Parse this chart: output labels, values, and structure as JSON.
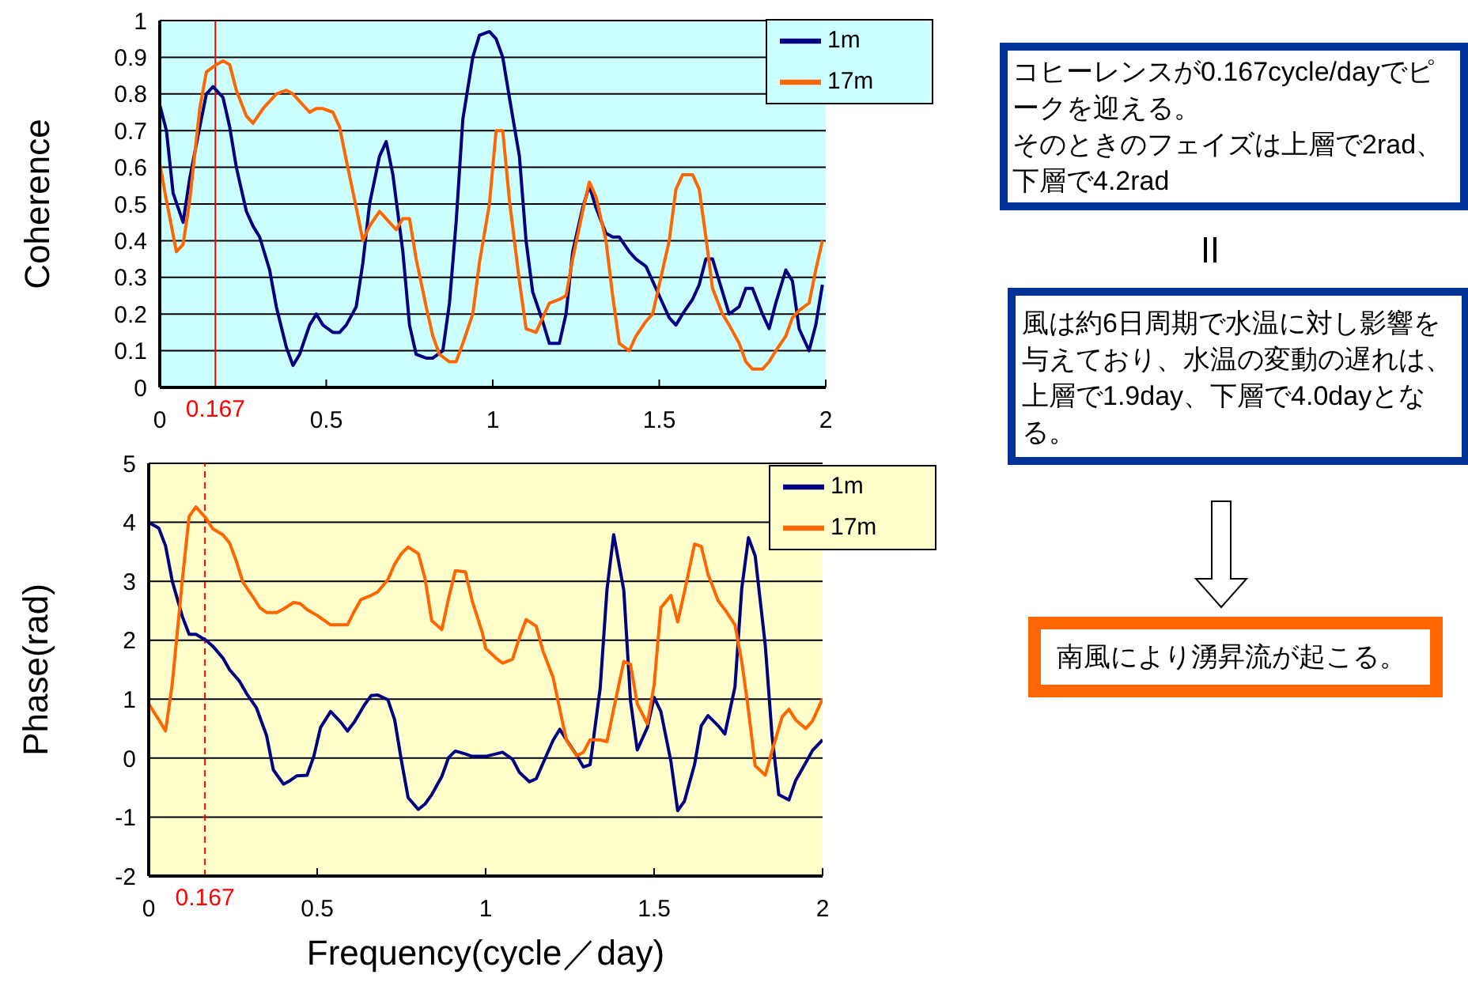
{
  "chart_data": [
    {
      "type": "line",
      "ylabel": "Coherence",
      "xlim": [
        0,
        2
      ],
      "xticks": [
        0,
        0.5,
        1,
        1.5,
        2
      ],
      "ylim": [
        0,
        1
      ],
      "yticks": [
        0,
        0.1,
        0.2,
        0.3,
        0.4,
        0.5,
        0.6,
        0.7,
        0.8,
        0.9,
        1
      ],
      "grid": "y",
      "legend": "top right",
      "line_style": "solid",
      "ref_lines": [
        {
          "axis": "x",
          "value": 0.167,
          "label": "0.167",
          "color": "#ff0000",
          "line_style": "solid"
        }
      ],
      "series": [
        {
          "name": "1m",
          "color": "#000080",
          "x": [
            0,
            0.02,
            0.04,
            0.07,
            0.09,
            0.12,
            0.14,
            0.16,
            0.19,
            0.21,
            0.23,
            0.26,
            0.28,
            0.3,
            0.33,
            0.35,
            0.38,
            0.4,
            0.42,
            0.45,
            0.47,
            0.49,
            0.52,
            0.54,
            0.56,
            0.59,
            0.61,
            0.63,
            0.66,
            0.68,
            0.7,
            0.73,
            0.75,
            0.77,
            0.8,
            0.82,
            0.85,
            0.87,
            0.89,
            0.91,
            0.94,
            0.96,
            0.99,
            1.01,
            1.03,
            1.05,
            1.08,
            1.1,
            1.12,
            1.15,
            1.17,
            1.2,
            1.22,
            1.24,
            1.27,
            1.29,
            1.31,
            1.34,
            1.36,
            1.38,
            1.41,
            1.43,
            1.46,
            1.48,
            1.5,
            1.53,
            1.55,
            1.57,
            1.6,
            1.62,
            1.64,
            1.66,
            1.69,
            1.71,
            1.74,
            1.76,
            1.78,
            1.81,
            1.83,
            1.85,
            1.88,
            1.9,
            1.92,
            1.95,
            1.97,
            1.99
          ],
          "values": [
            0.77,
            0.7,
            0.53,
            0.45,
            0.57,
            0.71,
            0.8,
            0.82,
            0.79,
            0.71,
            0.6,
            0.48,
            0.44,
            0.41,
            0.32,
            0.22,
            0.11,
            0.06,
            0.09,
            0.17,
            0.2,
            0.17,
            0.15,
            0.15,
            0.17,
            0.22,
            0.34,
            0.5,
            0.63,
            0.67,
            0.58,
            0.37,
            0.17,
            0.09,
            0.08,
            0.08,
            0.1,
            0.23,
            0.45,
            0.73,
            0.9,
            0.96,
            0.97,
            0.95,
            0.9,
            0.79,
            0.63,
            0.4,
            0.26,
            0.18,
            0.12,
            0.12,
            0.2,
            0.37,
            0.49,
            0.55,
            0.49,
            0.42,
            0.41,
            0.41,
            0.37,
            0.35,
            0.33,
            0.29,
            0.25,
            0.19,
            0.17,
            0.2,
            0.24,
            0.28,
            0.35,
            0.35,
            0.26,
            0.2,
            0.22,
            0.27,
            0.27,
            0.2,
            0.16,
            0.23,
            0.32,
            0.29,
            0.16,
            0.1,
            0.17,
            0.28
          ]
        },
        {
          "name": "17m",
          "color": "#ff6600",
          "x": [
            0,
            0.02,
            0.05,
            0.07,
            0.09,
            0.12,
            0.14,
            0.17,
            0.19,
            0.21,
            0.23,
            0.26,
            0.28,
            0.31,
            0.33,
            0.35,
            0.38,
            0.4,
            0.42,
            0.45,
            0.47,
            0.49,
            0.52,
            0.54,
            0.56,
            0.59,
            0.61,
            0.63,
            0.66,
            0.68,
            0.71,
            0.73,
            0.75,
            0.77,
            0.8,
            0.82,
            0.84,
            0.87,
            0.89,
            0.91,
            0.94,
            0.96,
            0.99,
            1.01,
            1.03,
            1.05,
            1.08,
            1.1,
            1.13,
            1.15,
            1.17,
            1.2,
            1.22,
            1.24,
            1.27,
            1.29,
            1.31,
            1.34,
            1.36,
            1.38,
            1.41,
            1.43,
            1.46,
            1.48,
            1.5,
            1.53,
            1.55,
            1.57,
            1.6,
            1.62,
            1.64,
            1.66,
            1.69,
            1.71,
            1.74,
            1.76,
            1.78,
            1.81,
            1.83,
            1.85,
            1.88,
            1.9,
            1.92,
            1.95,
            1.97,
            1.99
          ],
          "values": [
            0.61,
            0.51,
            0.37,
            0.39,
            0.51,
            0.76,
            0.86,
            0.88,
            0.89,
            0.88,
            0.81,
            0.74,
            0.72,
            0.76,
            0.78,
            0.8,
            0.81,
            0.8,
            0.78,
            0.75,
            0.76,
            0.76,
            0.75,
            0.71,
            0.62,
            0.49,
            0.4,
            0.44,
            0.48,
            0.46,
            0.43,
            0.46,
            0.46,
            0.35,
            0.22,
            0.14,
            0.09,
            0.07,
            0.07,
            0.12,
            0.2,
            0.34,
            0.5,
            0.7,
            0.7,
            0.51,
            0.29,
            0.16,
            0.15,
            0.19,
            0.23,
            0.24,
            0.25,
            0.35,
            0.48,
            0.56,
            0.52,
            0.4,
            0.25,
            0.12,
            0.1,
            0.14,
            0.18,
            0.2,
            0.28,
            0.4,
            0.54,
            0.58,
            0.58,
            0.54,
            0.41,
            0.27,
            0.2,
            0.17,
            0.12,
            0.07,
            0.05,
            0.05,
            0.07,
            0.1,
            0.14,
            0.19,
            0.21,
            0.23,
            0.32,
            0.4
          ]
        }
      ]
    },
    {
      "type": "line",
      "xlabel": "Frequency(cycle／day)",
      "ylabel": "Phase(rad)",
      "xlim": [
        0,
        2
      ],
      "xticks": [
        0,
        0.5,
        1,
        1.5,
        2
      ],
      "ylim": [
        -2,
        5
      ],
      "yticks": [
        -2,
        -1,
        0,
        1,
        2,
        3,
        4,
        5
      ],
      "grid": "y",
      "legend": "top right",
      "line_style": "solid",
      "ref_lines": [
        {
          "axis": "x",
          "value": 0.167,
          "label": "0.167",
          "color": "#ff0000",
          "line_style": "dashed"
        }
      ],
      "series": [
        {
          "name": "1m",
          "color": "#000080",
          "x": [
            0,
            0.03,
            0.05,
            0.07,
            0.1,
            0.12,
            0.14,
            0.17,
            0.19,
            0.22,
            0.24,
            0.27,
            0.29,
            0.32,
            0.35,
            0.37,
            0.4,
            0.42,
            0.44,
            0.47,
            0.49,
            0.51,
            0.54,
            0.57,
            0.59,
            0.61,
            0.64,
            0.66,
            0.68,
            0.71,
            0.73,
            0.75,
            0.77,
            0.8,
            0.82,
            0.84,
            0.87,
            0.89,
            0.91,
            0.94,
            0.96,
            0.98,
            1,
            1.03,
            1.05,
            1.08,
            1.1,
            1.13,
            1.15,
            1.17,
            1.2,
            1.22,
            1.24,
            1.27,
            1.29,
            1.31,
            1.34,
            1.36,
            1.38,
            1.41,
            1.43,
            1.45,
            1.48,
            1.5,
            1.52,
            1.55,
            1.57,
            1.59,
            1.62,
            1.64,
            1.66,
            1.69,
            1.71,
            1.74,
            1.76,
            1.78,
            1.8,
            1.83,
            1.85,
            1.87,
            1.9,
            1.92,
            1.95,
            1.97,
            2
          ],
          "values": [
            4,
            3.9,
            3.6,
            3,
            2.4,
            2.1,
            2.1,
            2,
            1.9,
            1.7,
            1.5,
            1.3,
            1.1,
            0.85,
            0.38,
            -0.2,
            -0.44,
            -0.38,
            -0.3,
            -0.29,
            0.03,
            0.52,
            0.79,
            0.61,
            0.46,
            0.61,
            0.9,
            1.06,
            1.07,
            0.99,
            0.65,
            -0.04,
            -0.67,
            -0.87,
            -0.78,
            -0.62,
            -0.31,
            0.01,
            0.12,
            0.07,
            0.03,
            0.03,
            0.03,
            0.07,
            0.1,
            -0.02,
            -0.24,
            -0.4,
            -0.35,
            -0.09,
            0.3,
            0.49,
            0.31,
            0.05,
            -0.15,
            -0.11,
            1.19,
            2.85,
            3.79,
            2.85,
            0.97,
            0.14,
            0.52,
            1.03,
            0.79,
            -0.06,
            -0.89,
            -0.73,
            -0.11,
            0.55,
            0.72,
            0.55,
            0.41,
            1.21,
            2.87,
            3.74,
            3.43,
            1.91,
            0.38,
            -0.62,
            -0.71,
            -0.38,
            -0.08,
            0.13,
            0.31
          ]
        },
        {
          "name": "17m",
          "color": "#ff6600",
          "x": [
            0,
            0.03,
            0.05,
            0.07,
            0.1,
            0.12,
            0.14,
            0.17,
            0.19,
            0.22,
            0.24,
            0.26,
            0.28,
            0.31,
            0.33,
            0.35,
            0.38,
            0.4,
            0.43,
            0.45,
            0.47,
            0.5,
            0.52,
            0.54,
            0.57,
            0.59,
            0.61,
            0.63,
            0.66,
            0.68,
            0.71,
            0.73,
            0.75,
            0.77,
            0.8,
            0.82,
            0.84,
            0.87,
            0.89,
            0.91,
            0.94,
            0.96,
            0.99,
            1,
            1.03,
            1.05,
            1.08,
            1.1,
            1.12,
            1.15,
            1.17,
            1.2,
            1.22,
            1.24,
            1.27,
            1.29,
            1.31,
            1.34,
            1.36,
            1.38,
            1.41,
            1.43,
            1.45,
            1.48,
            1.5,
            1.52,
            1.55,
            1.57,
            1.59,
            1.62,
            1.64,
            1.66,
            1.69,
            1.71,
            1.74,
            1.76,
            1.78,
            1.8,
            1.83,
            1.85,
            1.88,
            1.9,
            1.92,
            1.95,
            1.97,
            2
          ],
          "values": [
            0.92,
            0.65,
            0.46,
            1.26,
            3.03,
            4.1,
            4.26,
            4.07,
            3.89,
            3.79,
            3.65,
            3.34,
            2.98,
            2.73,
            2.55,
            2.47,
            2.47,
            2.53,
            2.64,
            2.62,
            2.52,
            2.42,
            2.34,
            2.26,
            2.26,
            2.26,
            2.49,
            2.69,
            2.76,
            2.82,
            3.03,
            3.29,
            3.47,
            3.58,
            3.47,
            3.05,
            2.33,
            2.18,
            2.71,
            3.18,
            3.16,
            2.67,
            2.13,
            1.86,
            1.7,
            1.61,
            1.68,
            2.04,
            2.35,
            2.24,
            1.82,
            1.37,
            0.83,
            0.3,
            0.04,
            0.1,
            0.31,
            0.31,
            0.28,
            0.83,
            1.64,
            1.59,
            0.92,
            0.58,
            1.24,
            2.55,
            2.76,
            2.31,
            2.82,
            3.63,
            3.59,
            3.12,
            2.67,
            2.52,
            2.26,
            1.64,
            0.81,
            -0.13,
            -0.29,
            0.12,
            0.7,
            0.83,
            0.65,
            0.5,
            0.63,
            1.01
          ]
        }
      ]
    },
    {
      "type": "other",
      "annotations": [
        "コヒーレンスが0.167cycle/dayでピークを迎える。",
        "そのときのフェイズは上層で2rad、下層で4.2rad",
        "風は約6日周期で水温に対し影響を与えており、水温の変動の遅れは、上層で1.9day、下層で4.0dayとなる。",
        "南風により湧昇流が起こる。"
      ]
    }
  ]
}
